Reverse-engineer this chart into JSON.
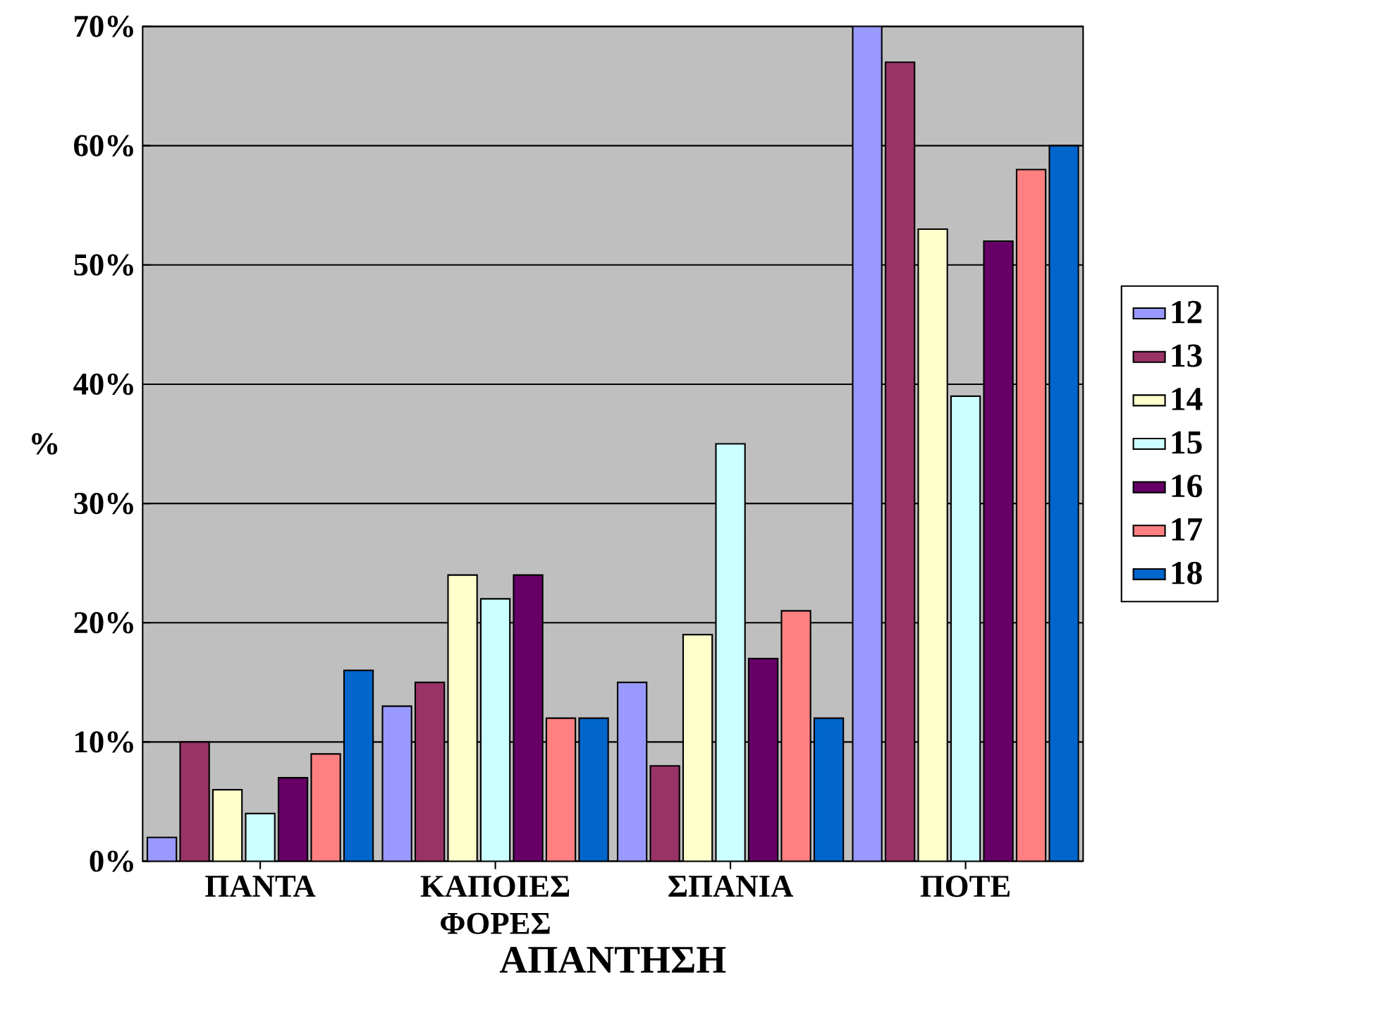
{
  "chart_data": {
    "type": "bar",
    "xlabel": "ΑΠΑΝΤΗΣΗ",
    "ylabel": "%",
    "categories": [
      "ΠΑΝΤΑ",
      "ΚΑΠΟΙΕΣ ΦΟΡΕΣ",
      "ΣΠΑΝΙΑ",
      "ΠΟΤΕ"
    ],
    "series": [
      {
        "name": "12",
        "color": "#9999ff",
        "values": [
          2,
          13,
          15,
          70
        ]
      },
      {
        "name": "13",
        "color": "#993366",
        "values": [
          10,
          15,
          8,
          67
        ]
      },
      {
        "name": "14",
        "color": "#ffffcc",
        "values": [
          6,
          24,
          19,
          53
        ]
      },
      {
        "name": "15",
        "color": "#ccffff",
        "values": [
          4,
          22,
          35,
          39
        ]
      },
      {
        "name": "16",
        "color": "#660066",
        "values": [
          7,
          24,
          17,
          52
        ]
      },
      {
        "name": "17",
        "color": "#ff8080",
        "values": [
          9,
          12,
          21,
          58
        ]
      },
      {
        "name": "18",
        "color": "#0066cc",
        "values": [
          16,
          12,
          12,
          60
        ]
      }
    ],
    "ylim": [
      0,
      70
    ],
    "yticks": [
      {
        "value": 0,
        "label": "0%"
      },
      {
        "value": 10,
        "label": "10%"
      },
      {
        "value": 20,
        "label": "20%"
      },
      {
        "value": 30,
        "label": "30%"
      },
      {
        "value": 40,
        "label": "40%"
      },
      {
        "value": 50,
        "label": "50%"
      },
      {
        "value": 60,
        "label": "60%"
      },
      {
        "value": 70,
        "label": "70%"
      }
    ],
    "grid": "y",
    "legend": "right"
  }
}
